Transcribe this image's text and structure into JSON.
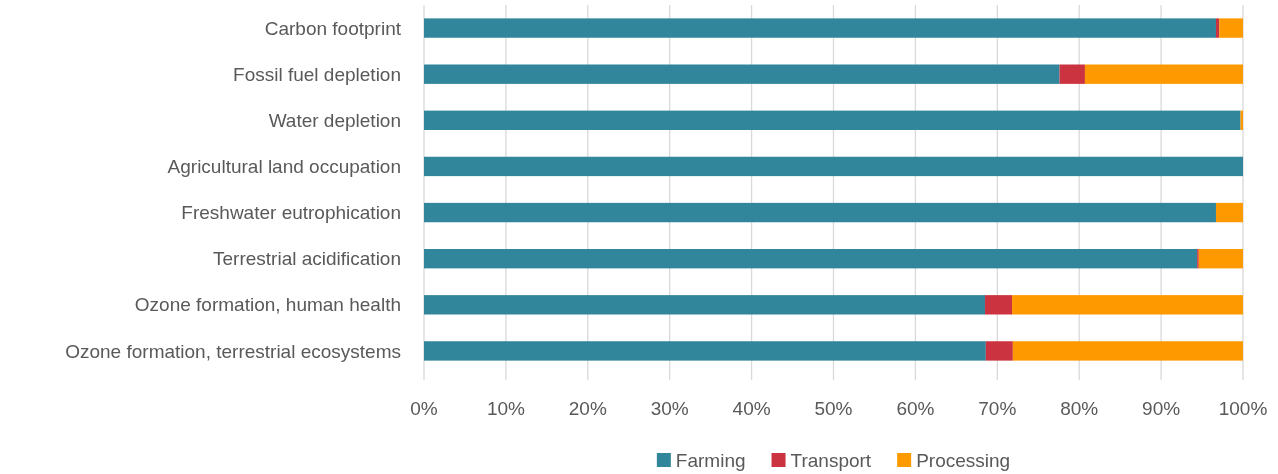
{
  "chart_data": {
    "type": "bar",
    "orientation": "horizontal",
    "stacked": true,
    "categories": [
      "Carbon footprint",
      "Fossil fuel depletion",
      "Water depletion",
      "Agricultural land occupation",
      "Freshwater eutrophication",
      "Terrestrial acidification",
      "Ozone formation, human health",
      "Ozone formation, terrestrial ecosystems"
    ],
    "series": [
      {
        "name": "Farming",
        "color": "#31869b",
        "values": [
          96.7,
          77.6,
          99.7,
          100,
          96.7,
          94.4,
          68.5,
          68.6
        ]
      },
      {
        "name": "Transport",
        "color": "#cc3340",
        "values": [
          0.4,
          3.1,
          0,
          0,
          0,
          0.2,
          3.3,
          3.3
        ]
      },
      {
        "name": "Processing",
        "color": "#ff9900",
        "values": [
          2.9,
          19.3,
          0.3,
          0,
          3.3,
          5.4,
          28.2,
          28.1
        ]
      }
    ],
    "xlim": [
      0,
      100
    ],
    "xticks": [
      {
        "value": 0,
        "label": "0%"
      },
      {
        "value": 10,
        "label": "10%"
      },
      {
        "value": 20,
        "label": "20%"
      },
      {
        "value": 30,
        "label": "30%"
      },
      {
        "value": 40,
        "label": "40%"
      },
      {
        "value": 50,
        "label": "50%"
      },
      {
        "value": 60,
        "label": "60%"
      },
      {
        "value": 70,
        "label": "70%"
      },
      {
        "value": 80,
        "label": "80%"
      },
      {
        "value": 90,
        "label": "90%"
      },
      {
        "value": 100,
        "label": "100%"
      }
    ],
    "grid": "x",
    "legend": "bottom"
  }
}
